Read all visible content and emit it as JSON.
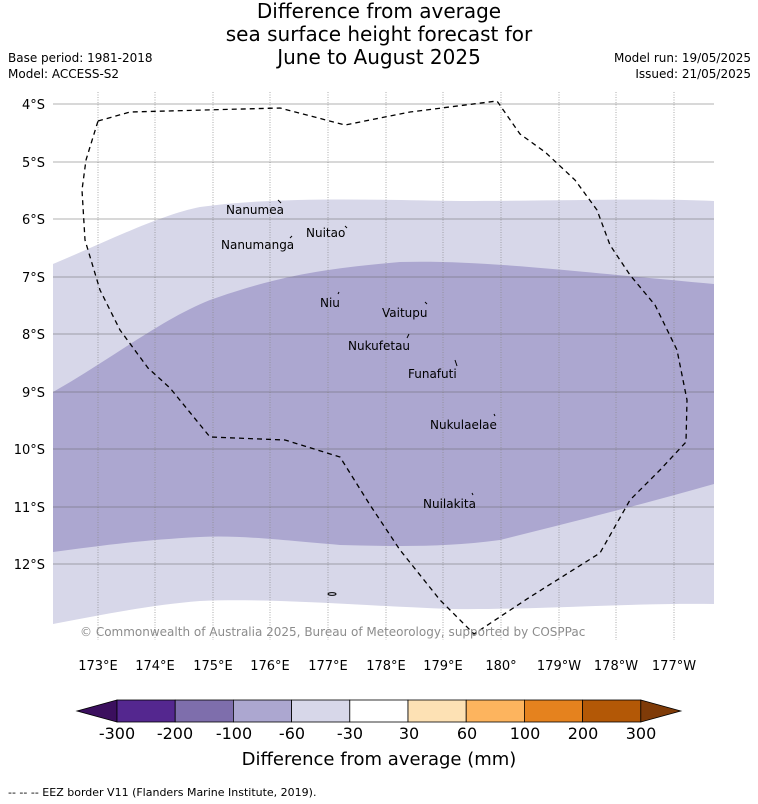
{
  "title_lines": [
    "Difference from average",
    "sea surface height forecast for",
    "June to August 2025"
  ],
  "base_period": "Base period: 1981-2018",
  "model": "Model: ACCESS-S2",
  "model_run": "Model run: 19/05/2025",
  "issued": "Issued: 21/05/2025",
  "copyright": "© Commonwealth of Australia 2025, Bureau of Meteorology, supported by COSPPac",
  "lat_labels": [
    "4°S",
    "5°S",
    "6°S",
    "7°S",
    "8°S",
    "9°S",
    "10°S",
    "11°S",
    "12°S"
  ],
  "lon_labels": [
    "173°E",
    "174°E",
    "175°E",
    "176°E",
    "177°E",
    "178°E",
    "179°E",
    "180°",
    "179°W",
    "178°W",
    "177°W"
  ],
  "places": [
    {
      "name": "Nanumea"
    },
    {
      "name": "Nuitao"
    },
    {
      "name": "Nanumanga"
    },
    {
      "name": "Niu"
    },
    {
      "name": "Vaitupu"
    },
    {
      "name": "Nukufetau"
    },
    {
      "name": "Funafuti"
    },
    {
      "name": "Nukulaelae"
    },
    {
      "name": "Nuilakita"
    }
  ],
  "colorbar": {
    "title": "Difference from average (mm)",
    "tick_labels": [
      "-300",
      "-200",
      "-100",
      "-60",
      "-30",
      "30",
      "60",
      "100",
      "200",
      "300"
    ],
    "colors": [
      "#3b0f5e",
      "#54278f",
      "#7e6eac",
      "#aca7d0",
      "#d7d7e9",
      "#ffffff",
      "#fde1b4",
      "#fdb45e",
      "#e5821e",
      "#b35806",
      "#7f3b08"
    ]
  },
  "field_colors": {
    "band_-60_-30": "#d7d7e9",
    "band_-100_-60": "#aca7d0"
  },
  "footnote": "-- -- -- EEZ border V11 (Flanders Marine Institute, 2019)."
}
